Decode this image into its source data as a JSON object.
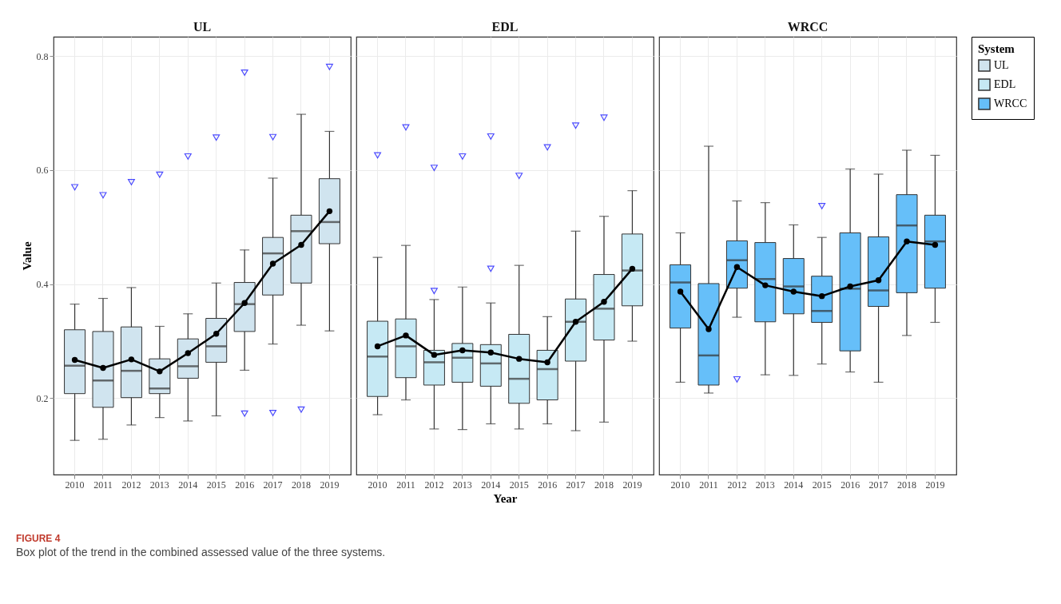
{
  "chart_data": [
    {
      "type": "box",
      "title": "UL",
      "ylabel": "Value",
      "categories": [
        "2010",
        "2011",
        "2012",
        "2013",
        "2014",
        "2015",
        "2016",
        "2017",
        "2018",
        "2019"
      ],
      "ylim": [
        0.066,
        0.834
      ],
      "yticks": [
        0.2,
        0.4,
        0.6,
        0.8
      ],
      "grid": true,
      "marker": "circle",
      "legend": "right",
      "legend_title": "System",
      "annotations": [
        "FIGURE 4",
        "Box plot of the trend in the combined assessed value of the three systems."
      ],
      "series": [
        {
          "name": "UL",
          "color": "#d0e4ef",
          "boxes": [
            {
              "low": 0.126,
              "q1": 0.208,
              "median": 0.257,
              "q3": 0.32,
              "high": 0.365,
              "outliers": [
                0.57
              ]
            },
            {
              "low": 0.128,
              "q1": 0.184,
              "median": 0.231,
              "q3": 0.317,
              "high": 0.375,
              "outliers": [
                0.556
              ]
            },
            {
              "low": 0.153,
              "q1": 0.201,
              "median": 0.248,
              "q3": 0.325,
              "high": 0.394,
              "outliers": [
                0.579
              ]
            },
            {
              "low": 0.166,
              "q1": 0.208,
              "median": 0.217,
              "q3": 0.269,
              "high": 0.326,
              "outliers": [
                0.592
              ]
            },
            {
              "low": 0.16,
              "q1": 0.235,
              "median": 0.256,
              "q3": 0.304,
              "high": 0.348,
              "outliers": [
                0.624
              ]
            },
            {
              "low": 0.169,
              "q1": 0.263,
              "median": 0.291,
              "q3": 0.34,
              "high": 0.402,
              "outliers": [
                0.657
              ]
            },
            {
              "low": 0.249,
              "q1": 0.317,
              "median": 0.365,
              "q3": 0.403,
              "high": 0.46,
              "outliers": [
                0.771,
                0.173
              ]
            },
            {
              "low": 0.295,
              "q1": 0.381,
              "median": 0.454,
              "q3": 0.482,
              "high": 0.586,
              "outliers": [
                0.658,
                0.174
              ]
            },
            {
              "low": 0.328,
              "q1": 0.402,
              "median": 0.493,
              "q3": 0.521,
              "high": 0.698,
              "outliers": [
                0.18
              ]
            },
            {
              "low": 0.318,
              "q1": 0.471,
              "median": 0.509,
              "q3": 0.585,
              "high": 0.668,
              "outliers": [
                0.781
              ]
            }
          ]
        },
        {
          "type": "line",
          "color": "#000000",
          "values": [
            0.267,
            0.253,
            0.268,
            0.247,
            0.279,
            0.313,
            0.367,
            0.436,
            0.469,
            0.528
          ]
        }
      ]
    },
    {
      "type": "box",
      "title": "EDL",
      "xlabel": "Year",
      "categories": [
        "2010",
        "2011",
        "2012",
        "2013",
        "2014",
        "2015",
        "2016",
        "2017",
        "2018",
        "2019"
      ],
      "ylim": [
        0.066,
        0.834
      ],
      "yticks": [
        0.2,
        0.4,
        0.6,
        0.8
      ],
      "grid": true,
      "marker": "circle",
      "tick_labels": "x",
      "series": [
        {
          "name": "EDL",
          "color": "#c6e9f4",
          "boxes": [
            {
              "low": 0.171,
              "q1": 0.203,
              "median": 0.273,
              "q3": 0.335,
              "high": 0.447,
              "outliers": [
                0.626
              ]
            },
            {
              "low": 0.197,
              "q1": 0.236,
              "median": 0.291,
              "q3": 0.339,
              "high": 0.468,
              "outliers": [
                0.675
              ]
            },
            {
              "low": 0.146,
              "q1": 0.223,
              "median": 0.263,
              "q3": 0.284,
              "high": 0.373,
              "outliers": [
                0.604,
                0.388
              ]
            },
            {
              "low": 0.145,
              "q1": 0.228,
              "median": 0.271,
              "q3": 0.296,
              "high": 0.395,
              "outliers": [
                0.624
              ]
            },
            {
              "low": 0.155,
              "q1": 0.221,
              "median": 0.261,
              "q3": 0.294,
              "high": 0.367,
              "outliers": [
                0.659,
                0.427
              ]
            },
            {
              "low": 0.146,
              "q1": 0.191,
              "median": 0.234,
              "q3": 0.312,
              "high": 0.433,
              "outliers": [
                0.59
              ]
            },
            {
              "low": 0.155,
              "q1": 0.197,
              "median": 0.251,
              "q3": 0.284,
              "high": 0.343,
              "outliers": [
                0.64
              ]
            },
            {
              "low": 0.143,
              "q1": 0.265,
              "median": 0.334,
              "q3": 0.374,
              "high": 0.493,
              "outliers": [
                0.678
              ]
            },
            {
              "low": 0.158,
              "q1": 0.302,
              "median": 0.357,
              "q3": 0.417,
              "high": 0.519,
              "outliers": [
                0.692
              ]
            },
            {
              "low": 0.3,
              "q1": 0.362,
              "median": 0.424,
              "q3": 0.488,
              "high": 0.564
            }
          ]
        },
        {
          "type": "line",
          "color": "#000000",
          "values": [
            0.291,
            0.31,
            0.276,
            0.284,
            0.28,
            0.269,
            0.263,
            0.334,
            0.369,
            0.427
          ]
        }
      ]
    },
    {
      "type": "box",
      "title": "WRCC",
      "categories": [
        "2010",
        "2011",
        "2012",
        "2013",
        "2014",
        "2015",
        "2016",
        "2017",
        "2018",
        "2019"
      ],
      "ylim": [
        0.066,
        0.834
      ],
      "yticks": [
        0.2,
        0.4,
        0.6,
        0.8
      ],
      "grid": true,
      "marker": "circle",
      "tick_labels": "x",
      "series": [
        {
          "name": "WRCC",
          "color": "#66bff9",
          "boxes": [
            {
              "low": 0.228,
              "q1": 0.323,
              "median": 0.403,
              "q3": 0.434,
              "high": 0.49
            },
            {
              "low": 0.209,
              "q1": 0.223,
              "median": 0.275,
              "q3": 0.401,
              "high": 0.642
            },
            {
              "low": 0.342,
              "q1": 0.393,
              "median": 0.442,
              "q3": 0.476,
              "high": 0.546,
              "outliers": [
                0.233
              ]
            },
            {
              "low": 0.241,
              "q1": 0.334,
              "median": 0.409,
              "q3": 0.473,
              "high": 0.543
            },
            {
              "low": 0.24,
              "q1": 0.348,
              "median": 0.396,
              "q3": 0.445,
              "high": 0.504
            },
            {
              "low": 0.26,
              "q1": 0.333,
              "median": 0.353,
              "q3": 0.414,
              "high": 0.482,
              "outliers": [
                0.537
              ]
            },
            {
              "low": 0.246,
              "q1": 0.283,
              "median": 0.392,
              "q3": 0.49,
              "high": 0.602
            },
            {
              "low": 0.228,
              "q1": 0.361,
              "median": 0.389,
              "q3": 0.483,
              "high": 0.593
            },
            {
              "low": 0.31,
              "q1": 0.385,
              "median": 0.503,
              "q3": 0.557,
              "high": 0.635
            },
            {
              "low": 0.333,
              "q1": 0.393,
              "median": 0.475,
              "q3": 0.521,
              "high": 0.626
            }
          ]
        },
        {
          "type": "line",
          "color": "#000000",
          "values": [
            0.387,
            0.321,
            0.43,
            0.398,
            0.387,
            0.379,
            0.396,
            0.407,
            0.475,
            0.469
          ]
        }
      ]
    }
  ]
}
